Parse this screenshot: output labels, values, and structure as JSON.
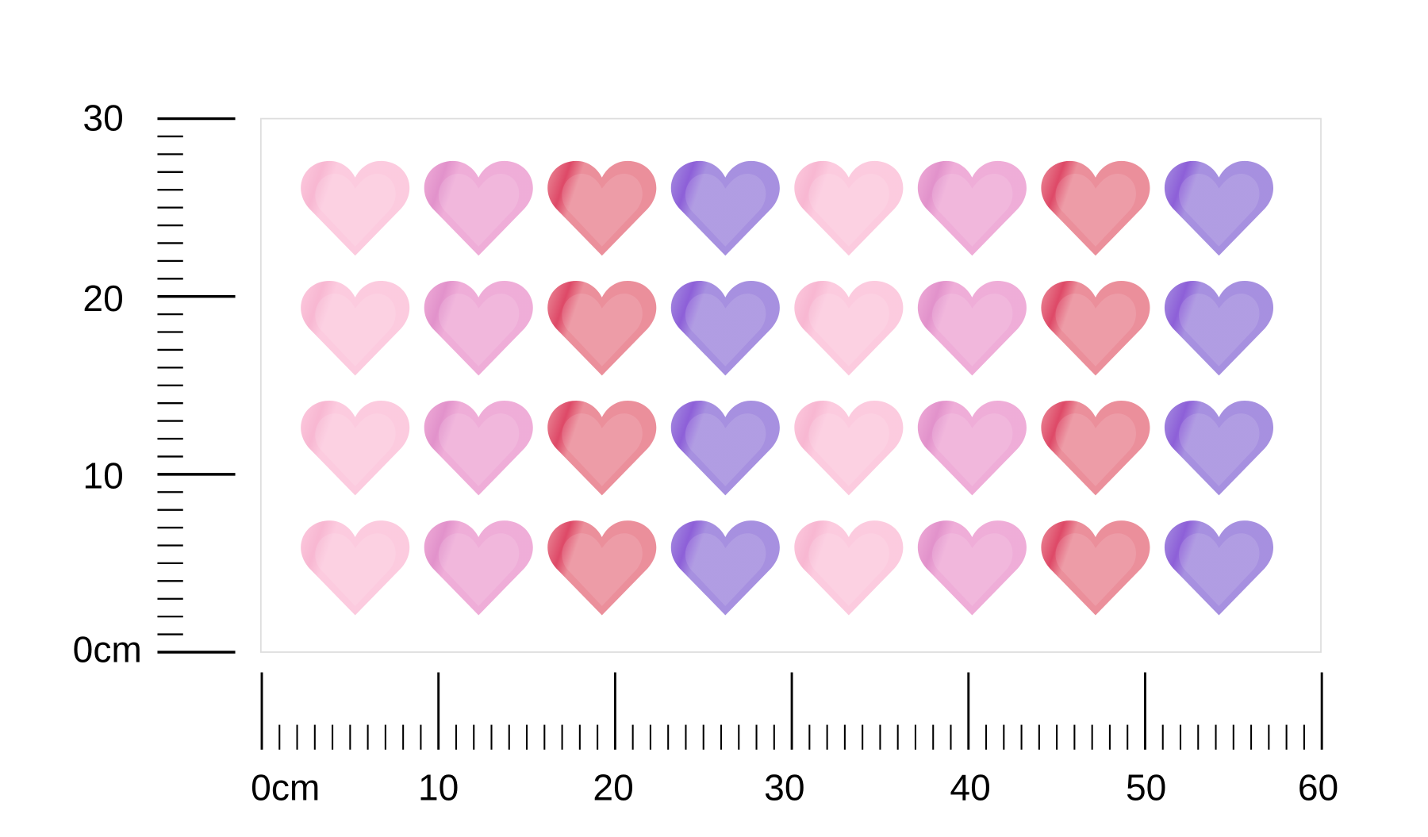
{
  "vertical_ruler": {
    "unit": "cm",
    "max": 30,
    "labels": [
      "0cm",
      "10",
      "20",
      "30"
    ]
  },
  "horizontal_ruler": {
    "unit": "cm",
    "max": 60,
    "labels": [
      "0cm",
      "10",
      "20",
      "30",
      "40",
      "50",
      "60"
    ]
  },
  "sticker_sheet": {
    "rows": 4,
    "columns": 8,
    "border_color": "#dddddd",
    "heart_icon": "heart-icon",
    "column_colors": [
      {
        "name": "light-pink",
        "base": "#fcc8dd",
        "shade": "#f7b3cf"
      },
      {
        "name": "pink",
        "base": "#eea9d6",
        "shade": "#e08cc8"
      },
      {
        "name": "red",
        "base": "#ea8996",
        "shade": "#dc3f5f"
      },
      {
        "name": "purple",
        "base": "#a28ade",
        "shade": "#8757d6"
      },
      {
        "name": "light-pink",
        "base": "#fcc8dd",
        "shade": "#f7b3cf"
      },
      {
        "name": "pink",
        "base": "#eea9d6",
        "shade": "#e08cc8"
      },
      {
        "name": "red",
        "base": "#ea8996",
        "shade": "#dc3f5f"
      },
      {
        "name": "purple",
        "base": "#a28ade",
        "shade": "#8757d6"
      }
    ]
  }
}
